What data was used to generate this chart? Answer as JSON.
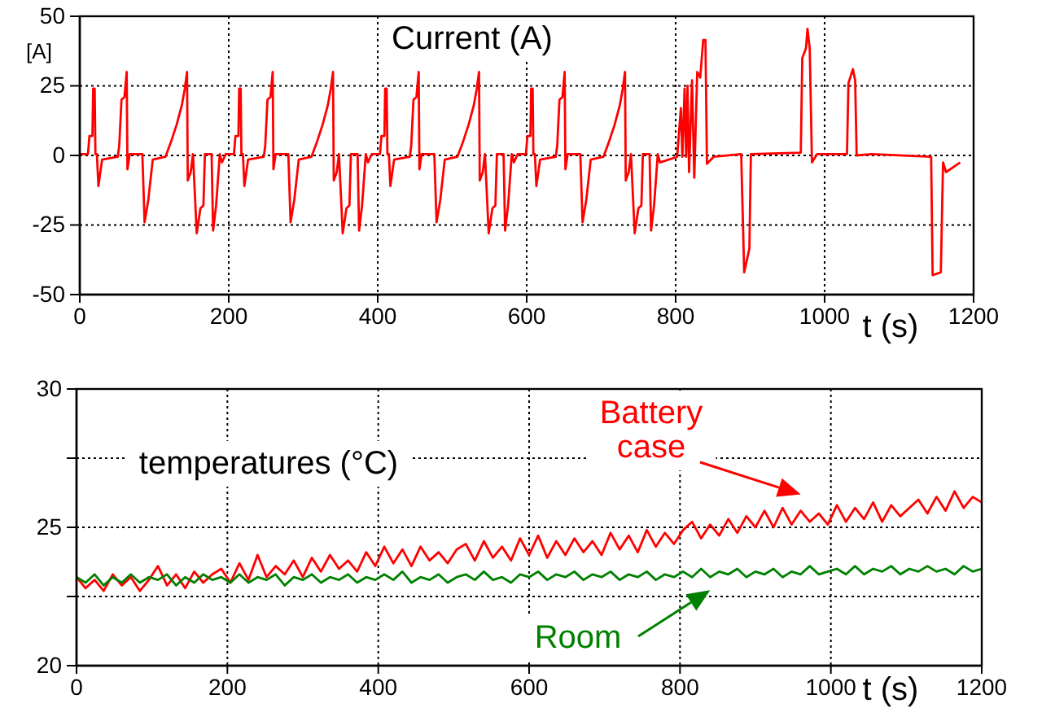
{
  "chart_data": [
    {
      "type": "line",
      "title": "Current (A)",
      "ylabel": "[A]",
      "xlabel": "t (s)",
      "xlim": [
        0,
        1200
      ],
      "ylim": [
        -50,
        50
      ],
      "xticks": [
        0,
        200,
        400,
        600,
        800,
        1000,
        1200
      ],
      "yticks": [
        -50,
        -25,
        0,
        25,
        50
      ],
      "grid": true,
      "series": [
        {
          "color": "#ff0000",
          "x": [
            0,
            11,
            13,
            17,
            18,
            20,
            21,
            23,
            25,
            30,
            51,
            53,
            56,
            60,
            63,
            64,
            67,
            84,
            87,
            92,
            98,
            115,
            122,
            130,
            137,
            141,
            144,
            145,
            149,
            152,
            157,
            162,
            166,
            168,
            177,
            179,
            183,
            188,
            191,
            196,
            207,
            209,
            213,
            214,
            216,
            217,
            219,
            221,
            226,
            247,
            249,
            252,
            256,
            259,
            260,
            263,
            280,
            283,
            288,
            294,
            311,
            318,
            326,
            333,
            337,
            340,
            341,
            345,
            348,
            353,
            358,
            362,
            364,
            373,
            375,
            379,
            384,
            387,
            392,
            403,
            405,
            409,
            410,
            412,
            413,
            415,
            417,
            422,
            443,
            445,
            448,
            452,
            455,
            456,
            459,
            476,
            479,
            484,
            490,
            507,
            514,
            522,
            529,
            533,
            536,
            537,
            541,
            544,
            549,
            554,
            558,
            560,
            569,
            571,
            575,
            580,
            583,
            588,
            599,
            601,
            605,
            606,
            608,
            609,
            611,
            613,
            618,
            639,
            641,
            644,
            648,
            651,
            652,
            655,
            672,
            675,
            680,
            686,
            703,
            710,
            718,
            725,
            729,
            732,
            733,
            737,
            740,
            745,
            750,
            754,
            756,
            765,
            767,
            771,
            776,
            779,
            802,
            807,
            809,
            812,
            814,
            816,
            818,
            822,
            825,
            829,
            833,
            837,
            840,
            842,
            851,
            888,
            892,
            899,
            901,
            968,
            970,
            975,
            977,
            980,
            983,
            990,
            1030,
            1032,
            1038,
            1041,
            1043,
            1063,
            1143,
            1145,
            1156,
            1159,
            1163,
            1182
          ],
          "values": [
            0.5,
            0.5,
            7,
            7,
            24,
            24,
            0.5,
            0.5,
            -11,
            -1.5,
            -0.5,
            3.5,
            20,
            21,
            30,
            -5,
            0.5,
            0.5,
            -24,
            -16,
            -1.5,
            -0.5,
            4.5,
            11,
            18,
            24,
            30,
            -9,
            -6,
            0.5,
            -28,
            -19,
            -18,
            0.5,
            0.5,
            -27,
            -18,
            0.5,
            -2.5,
            0.5,
            0.5,
            7,
            7,
            24,
            24,
            0.5,
            0.5,
            -11,
            -1.5,
            -0.5,
            3.5,
            20,
            21,
            30,
            -5,
            0.5,
            0.5,
            -24,
            -16,
            -1.5,
            -0.5,
            4.5,
            11,
            18,
            24,
            30,
            -9,
            -6,
            0.5,
            -28,
            -19,
            -18,
            0.5,
            0.5,
            -27,
            -18,
            0.5,
            -2.5,
            0.5,
            0.5,
            7,
            7,
            24,
            24,
            0.5,
            0.5,
            -11,
            -1.5,
            -0.5,
            3.5,
            20,
            21,
            30,
            -5,
            0.5,
            0.5,
            -24,
            -16,
            -1.5,
            -0.5,
            4.5,
            11,
            18,
            24,
            30,
            -9,
            -6,
            0.5,
            -28,
            -19,
            -18,
            0.5,
            0.5,
            -27,
            -18,
            0.5,
            -2.5,
            0.5,
            0.5,
            7,
            7,
            24,
            24,
            0.5,
            0.5,
            -11,
            -1.5,
            -0.5,
            3.5,
            20,
            21,
            30,
            -5,
            0.5,
            0.5,
            -24,
            -16,
            -1.5,
            -0.5,
            4.5,
            11,
            18,
            24,
            30,
            -9,
            -6,
            0.5,
            -28,
            -19,
            -18,
            0.5,
            0.5,
            -27,
            -18,
            0.5,
            -2.5,
            -0.5,
            17,
            -0.5,
            24,
            -0.5,
            25,
            -6,
            27,
            -8,
            30,
            28,
            41.5,
            41.5,
            -3,
            -0.5,
            0.5,
            -42,
            -33.5,
            0.5,
            1,
            35,
            38.5,
            45.5,
            38.5,
            -2.5,
            0.5,
            0.5,
            26,
            31,
            27,
            0,
            0.5,
            -0.5,
            -43,
            -42,
            -2.5,
            -6,
            -2.5
          ]
        }
      ]
    },
    {
      "type": "line",
      "title": "temperatures (°C)",
      "xlabel": "t (s)",
      "xlim": [
        0,
        1200
      ],
      "ylim": [
        20,
        30
      ],
      "xticks": [
        0,
        200,
        400,
        600,
        800,
        1000,
        1200
      ],
      "yticks": [
        20,
        {
          "value": 22.5,
          "label": null
        },
        25,
        {
          "value": 27.5,
          "label": null
        },
        30
      ],
      "grid": true,
      "x": [
        0,
        12,
        24,
        36,
        48,
        60,
        72,
        84,
        96,
        108,
        120,
        132,
        144,
        156,
        168,
        180,
        192,
        204,
        216,
        228,
        240,
        252,
        264,
        276,
        288,
        300,
        312,
        324,
        336,
        348,
        360,
        372,
        384,
        396,
        408,
        420,
        432,
        444,
        456,
        468,
        480,
        492,
        504,
        516,
        528,
        540,
        552,
        564,
        576,
        588,
        600,
        612,
        624,
        636,
        648,
        660,
        672,
        684,
        696,
        708,
        720,
        732,
        744,
        756,
        768,
        780,
        792,
        804,
        816,
        828,
        840,
        852,
        864,
        876,
        888,
        900,
        912,
        924,
        936,
        948,
        960,
        972,
        984,
        996,
        1008,
        1020,
        1032,
        1044,
        1056,
        1068,
        1080,
        1092,
        1104,
        1116,
        1128,
        1140,
        1152,
        1164,
        1176,
        1188,
        1200
      ],
      "series": [
        {
          "name": "Battery case",
          "color": "#ff0000",
          "values": [
            23.2,
            22.8,
            23.1,
            22.7,
            23.3,
            22.9,
            23.2,
            22.7,
            23.1,
            23.6,
            22.9,
            23.3,
            22.8,
            23.4,
            23.0,
            23.3,
            23.5,
            23.0,
            23.7,
            23.1,
            24.0,
            23.2,
            23.6,
            23.3,
            23.8,
            23.2,
            23.9,
            23.4,
            24.0,
            23.5,
            23.8,
            23.4,
            24.1,
            23.6,
            24.3,
            23.7,
            24.2,
            23.6,
            24.3,
            23.8,
            24.1,
            23.7,
            24.2,
            24.4,
            23.8,
            24.5,
            23.9,
            24.3,
            23.8,
            24.6,
            24.0,
            24.7,
            23.9,
            24.5,
            24.0,
            24.6,
            24.1,
            24.5,
            24.0,
            24.8,
            24.2,
            24.7,
            24.1,
            24.9,
            24.3,
            24.8,
            24.4,
            24.9,
            25.2,
            24.6,
            25.1,
            24.7,
            25.3,
            24.8,
            25.4,
            25.0,
            25.6,
            25.0,
            25.7,
            25.1,
            25.6,
            25.2,
            25.5,
            25.1,
            25.8,
            25.2,
            25.7,
            25.3,
            25.9,
            25.2,
            25.8,
            25.4,
            25.7,
            26.0,
            25.5,
            26.1,
            25.6,
            26.3,
            25.7,
            26.1,
            25.9
          ]
        },
        {
          "name": "Room",
          "color": "#008000",
          "values": [
            23.2,
            23.0,
            23.3,
            22.9,
            23.2,
            23.0,
            23.3,
            23.0,
            23.2,
            23.1,
            23.3,
            22.9,
            23.2,
            23.0,
            23.3,
            23.1,
            23.2,
            23.0,
            23.3,
            23.0,
            23.2,
            23.1,
            23.3,
            22.9,
            23.2,
            23.1,
            23.3,
            23.0,
            23.2,
            23.1,
            23.3,
            23.0,
            23.2,
            23.1,
            23.3,
            23.1,
            23.4,
            23.0,
            23.2,
            23.1,
            23.3,
            23.0,
            23.2,
            23.3,
            23.1,
            23.4,
            23.1,
            23.2,
            23.0,
            23.3,
            23.2,
            23.4,
            23.1,
            23.3,
            23.2,
            23.4,
            23.1,
            23.3,
            23.2,
            23.4,
            23.1,
            23.3,
            23.2,
            23.4,
            23.1,
            23.3,
            23.2,
            23.4,
            23.2,
            23.5,
            23.2,
            23.4,
            23.3,
            23.5,
            23.2,
            23.4,
            23.3,
            23.5,
            23.2,
            23.4,
            23.3,
            23.6,
            23.3,
            23.4,
            23.5,
            23.3,
            23.6,
            23.3,
            23.5,
            23.4,
            23.6,
            23.3,
            23.5,
            23.4,
            23.6,
            23.4,
            23.5,
            23.3,
            23.6,
            23.4,
            23.5
          ]
        }
      ]
    }
  ]
}
